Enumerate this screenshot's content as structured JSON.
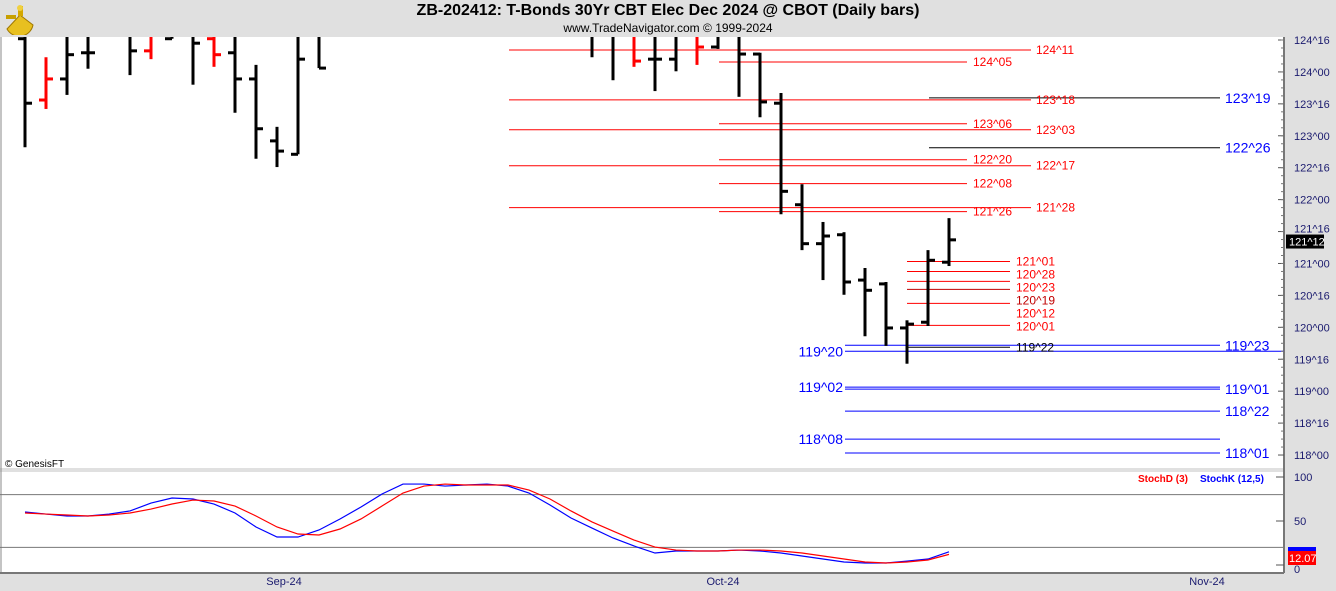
{
  "header": {
    "title": "ZB-202412:  T-Bonds 30Yr CBT Elec Dec 2024 @ CBOT  (Daily bars)",
    "subtitle": "www.TradeNavigator.com © 1999-2024",
    "credit": "© GenesisFT"
  },
  "colors": {
    "up_bar": "#000000",
    "down_bar": "#ff0000",
    "stoch_k": "#0000ff",
    "stoch_d": "#ff0000",
    "axis_text": "#1a1a6e",
    "bg": "#e0e0e0",
    "plot_bg": "#ffffff"
  },
  "chart_data": [
    {
      "type": "ohlc",
      "price_axis": {
        "ticks": [
          "124^16",
          "124^00",
          "123^16",
          "123^00",
          "122^16",
          "122^00",
          "121^16",
          "121^00",
          "120^16",
          "120^00",
          "119^16",
          "119^00",
          "118^16",
          "118^00"
        ],
        "range": [
          117.9,
          124.55
        ],
        "unit": "points and 32nds"
      },
      "x_labels": [
        "Sep-24",
        "Oct-24",
        "Nov-24"
      ],
      "last_price": "121^12",
      "bars_ohlc": [
        [
          124.52,
          124.6,
          122.82,
          123.51
        ],
        [
          123.56,
          124.23,
          123.42,
          123.89
        ],
        [
          123.89,
          124.6,
          123.64,
          124.27
        ],
        [
          124.3,
          124.6,
          124.05,
          124.3
        ],
        null,
        [
          124.6,
          124.6,
          123.95,
          124.33
        ],
        [
          124.33,
          124.6,
          124.2,
          124.6
        ],
        [
          124.52,
          124.6,
          124.52,
          124.6
        ],
        [
          124.6,
          124.6,
          123.8,
          124.45
        ],
        [
          124.52,
          124.6,
          124.08,
          124.27
        ],
        [
          124.3,
          124.6,
          123.36,
          123.89
        ],
        [
          123.89,
          124.11,
          122.64,
          123.11
        ],
        [
          122.92,
          123.14,
          122.51,
          122.76
        ],
        [
          122.71,
          124.6,
          122.71,
          124.2
        ],
        [
          124.6,
          124.6,
          124.06,
          124.06
        ],
        null,
        null,
        null,
        null,
        null,
        null,
        null,
        null,
        null,
        null,
        null,
        null,
        [
          124.6,
          124.6,
          124.23,
          124.6
        ],
        [
          124.6,
          124.6,
          123.87,
          124.6
        ],
        [
          124.6,
          124.6,
          124.08,
          124.17
        ],
        [
          124.2,
          124.6,
          123.7,
          124.2
        ],
        [
          124.2,
          124.6,
          124.01,
          124.6
        ],
        [
          124.6,
          124.6,
          124.11,
          124.39
        ],
        [
          124.39,
          124.6,
          124.36,
          124.6
        ],
        [
          124.6,
          124.6,
          123.61,
          124.28
        ],
        [
          124.28,
          124.3,
          123.29,
          123.53
        ],
        [
          123.51,
          123.67,
          121.77,
          122.13
        ],
        [
          121.92,
          122.24,
          121.21,
          121.31
        ],
        [
          121.31,
          121.65,
          120.74,
          121.43
        ],
        [
          121.45,
          121.49,
          120.51,
          120.71
        ],
        [
          120.74,
          120.93,
          119.86,
          120.58
        ],
        [
          120.68,
          120.71,
          119.71,
          119.99
        ],
        [
          119.99,
          120.11,
          119.43,
          120.05
        ],
        [
          120.08,
          121.21,
          120.02,
          121.05
        ],
        [
          121.02,
          121.71,
          120.96,
          121.37
        ]
      ],
      "down_bar_indices": [
        1,
        6,
        9,
        29,
        32
      ],
      "levels": [
        {
          "label": "124^11",
          "color": "#ff0000"
        },
        {
          "label": "124^05",
          "color": "#ff0000"
        },
        {
          "label": "123^18",
          "color": "#ff0000"
        },
        {
          "label": "123^19",
          "color": "#0000ff",
          "line_color": "#000000"
        },
        {
          "label": "123^06",
          "color": "#ff0000"
        },
        {
          "label": "123^03",
          "color": "#ff0000"
        },
        {
          "label": "122^26",
          "color": "#0000ff",
          "line_color": "#000000"
        },
        {
          "label": "122^20",
          "color": "#ff0000"
        },
        {
          "label": "122^17",
          "color": "#ff0000"
        },
        {
          "label": "122^08",
          "color": "#ff0000"
        },
        {
          "label": "121^28",
          "color": "#ff0000"
        },
        {
          "label": "121^26",
          "color": "#ff0000"
        },
        {
          "label": "121^01",
          "color": "#ff0000"
        },
        {
          "label": "120^28",
          "color": "#ff0000"
        },
        {
          "label": "120^23",
          "color": "#ff0000"
        },
        {
          "label": "120^19",
          "color": "#c00000"
        },
        {
          "label": "120^12",
          "color": "#ff0000"
        },
        {
          "label": "120^01",
          "color": "#ff0000"
        },
        {
          "label": "119^22",
          "color": "#000000"
        },
        {
          "label": "119^23",
          "color": "#0000ff"
        },
        {
          "label": "119^20",
          "color": "#0000ff"
        },
        {
          "label": "119^02",
          "color": "#0000ff"
        },
        {
          "label": "119^01",
          "color": "#0000ff"
        },
        {
          "label": "118^22",
          "color": "#0000ff"
        },
        {
          "label": "118^08",
          "color": "#0000ff"
        },
        {
          "label": "118^01",
          "color": "#0000ff"
        }
      ]
    },
    {
      "type": "line",
      "legend": [
        "StochD (3)",
        "StochK (12,5)"
      ],
      "legend_placement": "top-right",
      "y_ticks": [
        "100",
        "50",
        "0"
      ],
      "ylim": [
        0,
        100
      ],
      "reference_lines": [
        80,
        20
      ],
      "series": [
        {
          "name": "StochK (12,5)",
          "values": [
            60.2,
            57.9,
            55.7,
            55.7,
            57.9,
            61.4,
            70.4,
            76.1,
            75,
            69.3,
            59.1,
            43.2,
            31.8,
            31.8,
            39.8,
            52.3,
            65.9,
            80.7,
            92,
            92,
            89.7,
            90.9,
            92,
            89.7,
            81.8,
            68.2,
            53.4,
            42,
            30.7,
            21.6,
            13.6,
            15.9,
            15.9,
            15.9,
            17,
            15.9,
            13.6,
            10.2,
            6.8,
            3.4,
            2.3,
            2.3,
            4.5,
            6.8,
            15
          ]
        },
        {
          "name": "StochD (3)",
          "values": [
            59.1,
            57.9,
            56.8,
            55.7,
            56.8,
            59.1,
            63.6,
            69.3,
            73.8,
            72.7,
            67,
            55.7,
            43.2,
            35.2,
            34.1,
            40.9,
            52.3,
            67,
            81.8,
            89.7,
            92,
            90.9,
            90.9,
            90.9,
            85.2,
            75,
            61.4,
            48.9,
            38.6,
            28.4,
            20.4,
            17,
            15.9,
            15.9,
            17,
            17,
            15.9,
            13.6,
            10.2,
            6.8,
            3.4,
            2.3,
            3.4,
            5.7,
            12.07
          ]
        }
      ],
      "last_values": {
        "stoch_d": "12.07"
      }
    }
  ]
}
